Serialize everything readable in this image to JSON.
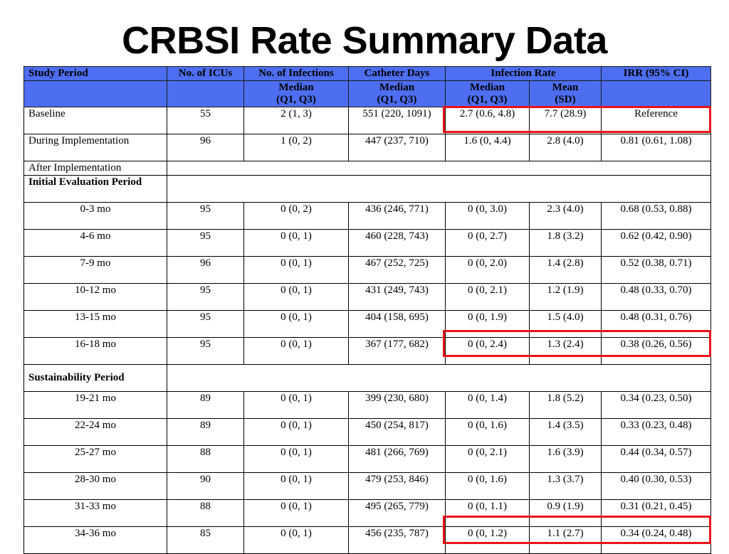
{
  "title": "CRBSI Rate Summary Data",
  "header": {
    "study_period": "Study Period",
    "icus": "No. of ICUs",
    "infections": "No. of Infections",
    "catheter_days": "Catheter Days",
    "infection_rate": "Infection Rate",
    "irr": "IRR  (95% CI)",
    "infections_sub1": "Median",
    "infections_sub2": "(Q1, Q3)",
    "catheter_sub1": "Median",
    "catheter_sub2": "(Q1, Q3)",
    "rate_median1": "Median",
    "rate_median2": "(Q1, Q3)",
    "rate_mean1": "Mean",
    "rate_mean2": "(SD)"
  },
  "rows": {
    "baseline": [
      "Baseline",
      "55",
      "2  (1, 3)",
      "551 (220, 1091)",
      "2.7 (0.6, 4.8)",
      "7.7 (28.9)",
      "Reference"
    ],
    "during": [
      "During Implementation",
      "96",
      "1  (0, 2)",
      "447 (237, 710)",
      "1.6 (0, 4.4)",
      "2.8 (4.0)",
      "0.81 (0.61, 1.08)"
    ],
    "after_label": "After Implementation",
    "initial_label": "Initial Evaluation Period",
    "m0_3": [
      "0-3 mo",
      "95",
      "0  (0, 2)",
      "436 (246, 771)",
      "0 (0, 3.0)",
      "2.3 (4.0)",
      "0.68 (0.53, 0.88)"
    ],
    "m4_6": [
      "4-6 mo",
      "95",
      "0  (0, 1)",
      "460 (228, 743)",
      "0 (0, 2.7)",
      "1.8 (3.2)",
      "0.62 (0.42, 0.90)"
    ],
    "m7_9": [
      "7-9 mo",
      "96",
      "0  (0, 1)",
      "467 (252, 725)",
      "0 (0, 2.0)",
      "1.4 (2.8)",
      "0.52 (0.38, 0.71)"
    ],
    "m10_12": [
      "10-12 mo",
      "95",
      "0  (0, 1)",
      "431 (249, 743)",
      "0 (0, 2.1)",
      "1.2 (1.9)",
      "0.48 (0.33, 0.70)"
    ],
    "m13_15": [
      "13-15 mo",
      "95",
      "0  (0, 1)",
      "404 (158, 695)",
      "0 (0, 1.9)",
      "1.5 (4.0)",
      "0.48 (0.31, 0.76)"
    ],
    "m16_18": [
      "16-18 mo",
      "95",
      "0  (0, 1)",
      "367 (177, 682)",
      "0 (0, 2.4)",
      "1.3 (2.4)",
      "0.38 (0.26, 0.56)"
    ],
    "sustain_label": "Sustainability Period",
    "m19_21": [
      "19-21 mo",
      "89",
      "0  (0, 1)",
      "399 (230, 680)",
      "0 (0, 1.4)",
      "1.8 (5.2)",
      "0.34 (0.23, 0.50)"
    ],
    "m22_24": [
      "22-24 mo",
      "89",
      "0  (0, 1)",
      "450 (254, 817)",
      "0 (0, 1.6)",
      "1.4 (3.5)",
      "0.33 (0.23, 0.48)"
    ],
    "m25_27": [
      "25-27 mo",
      "88",
      "0  (0, 1)",
      "481 (266, 769)",
      "0 (0, 2.1)",
      "1.6 (3.9)",
      "0.44 (0.34, 0.57)"
    ],
    "m28_30": [
      "28-30 mo",
      "90",
      "0  (0, 1)",
      "479 (253, 846)",
      "0 (0, 1.6)",
      "1.3 (3.7)",
      "0.40 (0.30, 0.53)"
    ],
    "m31_33": [
      "31-33 mo",
      "88",
      "0  (0, 1)",
      "495 (265, 779)",
      "0 (0, 1.1)",
      "0.9 (1.9)",
      "0.31 (0.21, 0.45)"
    ],
    "m34_36": [
      "34-36 mo",
      "85",
      "0  (0, 1)",
      "456 (235, 787)",
      "0 (0, 1.2)",
      "1.1 (2.7)",
      "0.34 (0.24, 0.48)"
    ]
  },
  "colors": {
    "header_bg": "#4d6ef0",
    "highlight": "#e8121a"
  }
}
